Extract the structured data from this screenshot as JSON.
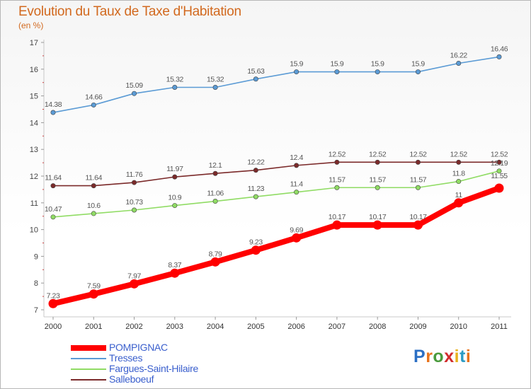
{
  "title": "Evolution du Taux de Taxe d'Habitation",
  "subtitle": "(en %)",
  "logo": {
    "text": "Proxiti",
    "colors": [
      "#2b6fc4",
      "#e8731c",
      "#4a9b3c",
      "#d12c2c",
      "#e8b21c",
      "#2b9bc4",
      "#e8731c"
    ]
  },
  "chart_data": {
    "type": "line",
    "title": "Evolution du Taux de Taxe d'Habitation",
    "ylabel": "(en %)",
    "xlabel": "",
    "x": [
      "2000",
      "2001",
      "2002",
      "2003",
      "2004",
      "2005",
      "2006",
      "2007",
      "2008",
      "2009",
      "2010",
      "2011"
    ],
    "ylim": [
      7,
      17
    ],
    "yticks": [
      7,
      8,
      9,
      10,
      11,
      12,
      13,
      14,
      15,
      16,
      17
    ],
    "grid": false,
    "legend": "bottom-left",
    "series": [
      {
        "name": "POMPIGNAC",
        "color": "#ff0000",
        "labels": [
          "7.23",
          "7.59",
          "7.97",
          "8.37",
          "8.79",
          "9.23",
          "9.69",
          "10.17",
          "10.17",
          "10.17",
          "11",
          ""
        ],
        "values": [
          7.23,
          7.59,
          7.97,
          8.37,
          8.79,
          9.23,
          9.69,
          10.17,
          10.17,
          10.17,
          11.0,
          11.55
        ]
      },
      {
        "name": "Tresses",
        "color": "#5b9bd5",
        "labels": [
          "14.38",
          "14.66",
          "15.09",
          "15.32",
          "15.32",
          "15.63",
          "15.9",
          "15.9",
          "15.9",
          "15.9",
          "16.22",
          "16.46"
        ],
        "values": [
          14.38,
          14.66,
          15.09,
          15.32,
          15.32,
          15.63,
          15.9,
          15.9,
          15.9,
          15.9,
          16.22,
          16.46
        ]
      },
      {
        "name": "Fargues-Saint-Hilaire",
        "color": "#90dc64",
        "labels": [
          "10.47",
          "10.6",
          "10.73",
          "10.9",
          "11.06",
          "11.23",
          "11.4",
          "11.57",
          "11.57",
          "11.57",
          "11.8",
          "12.19"
        ],
        "values": [
          10.47,
          10.6,
          10.73,
          10.9,
          11.06,
          11.23,
          11.4,
          11.57,
          11.57,
          11.57,
          11.8,
          12.19
        ]
      },
      {
        "name": "Salleboeuf",
        "color": "#7b2a2a",
        "labels": [
          "11.64",
          "11.64",
          "11.76",
          "11.97",
          "12.1",
          "12.22",
          "12.4",
          "12.52",
          "12.52",
          "12.52",
          "12.52",
          "12.52"
        ],
        "values": [
          11.64,
          11.64,
          11.76,
          11.97,
          12.1,
          12.22,
          12.4,
          12.52,
          12.52,
          12.52,
          12.52,
          12.52
        ]
      }
    ],
    "extra_labels": [
      {
        "text": "11.55",
        "series": "POMPIGNAC",
        "index": 11
      }
    ]
  }
}
